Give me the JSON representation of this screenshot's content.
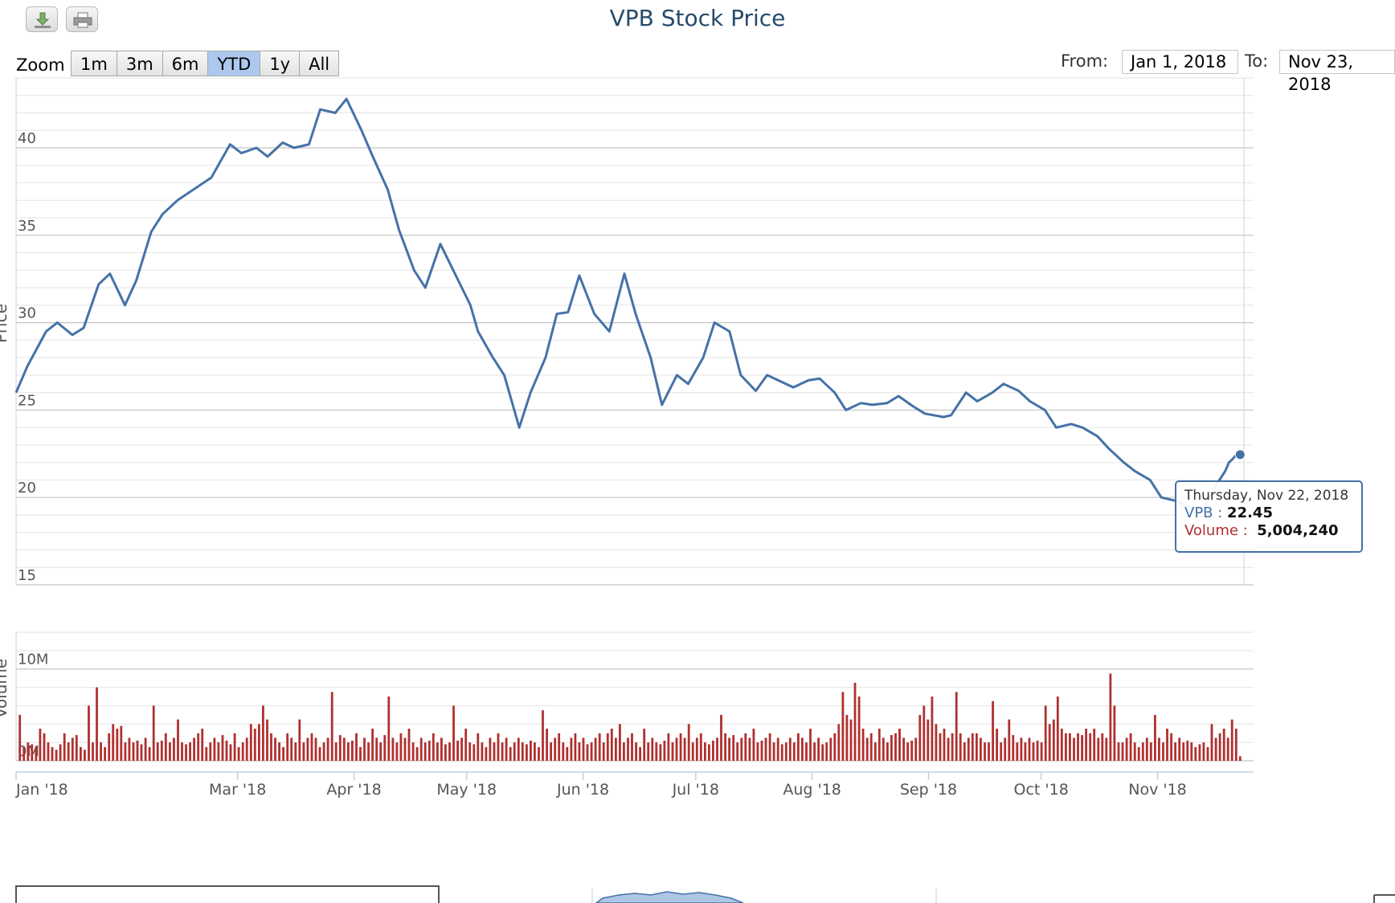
{
  "toolbar": {
    "download_icon": "download-icon",
    "print_icon": "print-icon"
  },
  "title": "VPB Stock Price",
  "zoom": {
    "label": "Zoom",
    "buttons": [
      "1m",
      "3m",
      "6m",
      "YTD",
      "1y",
      "All"
    ],
    "active": "YTD"
  },
  "range": {
    "from_label": "From:",
    "from_value": "Jan 1, 2018",
    "to_label": "To:",
    "to_value": "Nov 23, 2018"
  },
  "tooltip": {
    "date": "Thursday, Nov 22, 2018",
    "series_label": "VPB :",
    "series_value": "22.45",
    "volume_label": "Volume :",
    "volume_value": "5,004,240"
  },
  "colors": {
    "price": "#4572a7",
    "volume": "#b03030",
    "title": "#274b6d"
  },
  "chart_data": [
    {
      "type": "line",
      "title": "VPB Stock Price",
      "ylabel": "Price",
      "yticks": [
        15,
        20,
        25,
        30,
        35,
        40
      ],
      "ylim": [
        15,
        44
      ],
      "x_tick_labels": [
        "Jan '18",
        "Mar '18",
        "Apr '18",
        "May '18",
        "Jun '18",
        "Jul '18",
        "Aug '18",
        "Sep '18",
        "Oct '18",
        "Nov '18"
      ],
      "series": [
        {
          "name": "VPB",
          "x": [
            "2018-01-01",
            "2018-01-04",
            "2018-01-09",
            "2018-01-12",
            "2018-01-16",
            "2018-01-19",
            "2018-01-23",
            "2018-01-26",
            "2018-01-30",
            "2018-02-02",
            "2018-02-06",
            "2018-02-09",
            "2018-02-13",
            "2018-02-22",
            "2018-02-27",
            "2018-03-02",
            "2018-03-06",
            "2018-03-09",
            "2018-03-13",
            "2018-03-16",
            "2018-03-20",
            "2018-03-23",
            "2018-03-27",
            "2018-03-30",
            "2018-04-03",
            "2018-04-06",
            "2018-04-10",
            "2018-04-13",
            "2018-04-17",
            "2018-04-20",
            "2018-04-24",
            "2018-05-02",
            "2018-05-04",
            "2018-05-08",
            "2018-05-11",
            "2018-05-15",
            "2018-05-18",
            "2018-05-22",
            "2018-05-25",
            "2018-05-28",
            "2018-05-31",
            "2018-06-04",
            "2018-06-08",
            "2018-06-12",
            "2018-06-15",
            "2018-06-19",
            "2018-06-22",
            "2018-06-26",
            "2018-06-29",
            "2018-07-03",
            "2018-07-06",
            "2018-07-10",
            "2018-07-13",
            "2018-07-17",
            "2018-07-20",
            "2018-07-24",
            "2018-07-27",
            "2018-07-31",
            "2018-08-03",
            "2018-08-07",
            "2018-08-10",
            "2018-08-14",
            "2018-08-17",
            "2018-08-21",
            "2018-08-24",
            "2018-08-28",
            "2018-08-31",
            "2018-09-05",
            "2018-09-07",
            "2018-09-11",
            "2018-09-14",
            "2018-09-18",
            "2018-09-21",
            "2018-09-25",
            "2018-09-28",
            "2018-10-02",
            "2018-10-05",
            "2018-10-09",
            "2018-10-12",
            "2018-10-16",
            "2018-10-19",
            "2018-10-23",
            "2018-10-26",
            "2018-10-30",
            "2018-11-02",
            "2018-11-06",
            "2018-11-09",
            "2018-11-13",
            "2018-11-16",
            "2018-11-19",
            "2018-11-20",
            "2018-11-21",
            "2018-11-22",
            "2018-11-23"
          ],
          "values": [
            26.0,
            27.5,
            29.5,
            30.0,
            29.3,
            29.7,
            32.2,
            32.8,
            31.0,
            32.4,
            35.2,
            36.2,
            37.0,
            38.3,
            40.2,
            39.7,
            40.0,
            39.5,
            40.3,
            40.0,
            40.2,
            42.2,
            42.0,
            42.8,
            41.0,
            39.5,
            37.6,
            35.3,
            33.0,
            32.0,
            34.5,
            31.0,
            29.5,
            28.0,
            27.0,
            24.0,
            26.0,
            28.0,
            30.5,
            30.6,
            32.7,
            30.5,
            29.5,
            32.8,
            30.5,
            28.0,
            25.3,
            27.0,
            26.5,
            28.0,
            30.0,
            29.5,
            27.0,
            26.1,
            27.0,
            26.6,
            26.3,
            26.7,
            26.8,
            26.0,
            25.0,
            25.4,
            25.3,
            25.4,
            25.8,
            25.2,
            24.8,
            24.6,
            24.7,
            26.0,
            25.5,
            26.0,
            26.5,
            26.1,
            25.5,
            25.0,
            24.0,
            24.2,
            24.0,
            23.5,
            22.8,
            22.0,
            21.5,
            21.0,
            20.0,
            19.8,
            19.5,
            19.2,
            20.5,
            21.5,
            22.0,
            22.2,
            22.45,
            22.45
          ]
        }
      ]
    },
    {
      "type": "bar",
      "ylabel": "Volume",
      "yticks": [
        0,
        10000000
      ],
      "ytick_labels": [
        "0M",
        "10M"
      ],
      "ylim": [
        0,
        14000000
      ],
      "series": [
        {
          "name": "Volume",
          "x_start": "2018-01-02",
          "x_end": "2018-11-23",
          "values": [
            5.0,
            1.5,
            2.0,
            1.8,
            1.5,
            3.5,
            3.0,
            2.0,
            1.5,
            1.2,
            1.8,
            3.0,
            2.0,
            2.5,
            2.8,
            1.5,
            1.2,
            6.0,
            2.0,
            8.0,
            2.0,
            1.5,
            3.0,
            4.0,
            3.5,
            3.8,
            2.0,
            2.5,
            2.0,
            2.2,
            1.8,
            2.5,
            1.5,
            6.0,
            2.0,
            2.2,
            3.0,
            2.0,
            2.5,
            4.5,
            2.0,
            1.8,
            2.0,
            2.5,
            3.0,
            3.5,
            1.5,
            2.0,
            2.5,
            2.0,
            2.8,
            2.2,
            1.8,
            3.0,
            1.5,
            2.0,
            2.5,
            4.0,
            3.5,
            4.0,
            6.0,
            4.5,
            3.0,
            2.5,
            2.0,
            1.5,
            3.0,
            2.5,
            2.0,
            4.5,
            2.0,
            2.5,
            3.0,
            2.5,
            1.5,
            2.0,
            2.5,
            7.5,
            2.0,
            2.8,
            2.5,
            2.0,
            2.2,
            3.0,
            1.5,
            2.5,
            2.0,
            3.5,
            2.5,
            2.0,
            2.8,
            7.0,
            2.5,
            2.0,
            3.0,
            2.5,
            3.5,
            2.0,
            1.5,
            2.5,
            2.0,
            2.2,
            3.0,
            2.0,
            2.5,
            1.8,
            2.0,
            6.0,
            2.2,
            2.5,
            3.5,
            2.0,
            1.8,
            3.0,
            2.0,
            1.5,
            2.5,
            2.0,
            3.0,
            2.0,
            2.5,
            1.5,
            2.0,
            2.5,
            2.0,
            1.8,
            2.2,
            2.0,
            1.5,
            5.5,
            3.5,
            2.0,
            2.5,
            3.0,
            2.0,
            1.5,
            2.5,
            3.0,
            2.0,
            2.5,
            1.8,
            2.0,
            2.5,
            3.0,
            2.0,
            3.0,
            3.5,
            2.5,
            4.0,
            2.0,
            2.5,
            3.0,
            2.0,
            1.5,
            3.5,
            2.0,
            2.5,
            2.0,
            1.8,
            2.2,
            3.0,
            2.0,
            2.5,
            3.0,
            2.5,
            4.0,
            2.0,
            2.5,
            3.0,
            2.0,
            1.8,
            2.2,
            2.5,
            5.0,
            3.0,
            2.5,
            2.8,
            2.0,
            2.5,
            3.0,
            2.5,
            3.5,
            2.0,
            2.2,
            2.5,
            3.0,
            2.0,
            2.5,
            1.8,
            2.0,
            2.5,
            2.0,
            3.0,
            2.5,
            2.0,
            3.5,
            2.0,
            2.5,
            1.8,
            2.0,
            2.5,
            3.0,
            4.0,
            7.5,
            5.0,
            4.5,
            8.5,
            7.0,
            3.5,
            2.5,
            3.0,
            2.0,
            3.5,
            2.5,
            2.0,
            2.8,
            3.0,
            3.5,
            2.5,
            2.0,
            2.2,
            2.5,
            5.0,
            6.0,
            4.5,
            7.0,
            4.0,
            3.0,
            3.5,
            2.5,
            3.0,
            7.5,
            3.0,
            2.0,
            2.5,
            3.0,
            3.0,
            2.5,
            2.0,
            2.0,
            6.5,
            3.5,
            2.0,
            2.5,
            4.5,
            2.8,
            2.0,
            2.5,
            2.0,
            2.5,
            2.0,
            2.2,
            2.0,
            6.0,
            4.0,
            4.5,
            7.0,
            3.5,
            3.0,
            3.0,
            2.5,
            3.0,
            2.8,
            3.5,
            3.0,
            3.5,
            2.5,
            3.0,
            2.5,
            9.5,
            6.0,
            2.0,
            2.0,
            2.5,
            3.0,
            2.0,
            1.5,
            2.0,
            2.5,
            2.0,
            5.0,
            2.5,
            2.0,
            3.5,
            3.0,
            2.0,
            2.5,
            2.0,
            2.2,
            2.0,
            1.5,
            1.8,
            2.0,
            1.5,
            4.0,
            2.5,
            3.0,
            3.5,
            2.5,
            4.5,
            3.5,
            0.5
          ]
        }
      ]
    }
  ]
}
